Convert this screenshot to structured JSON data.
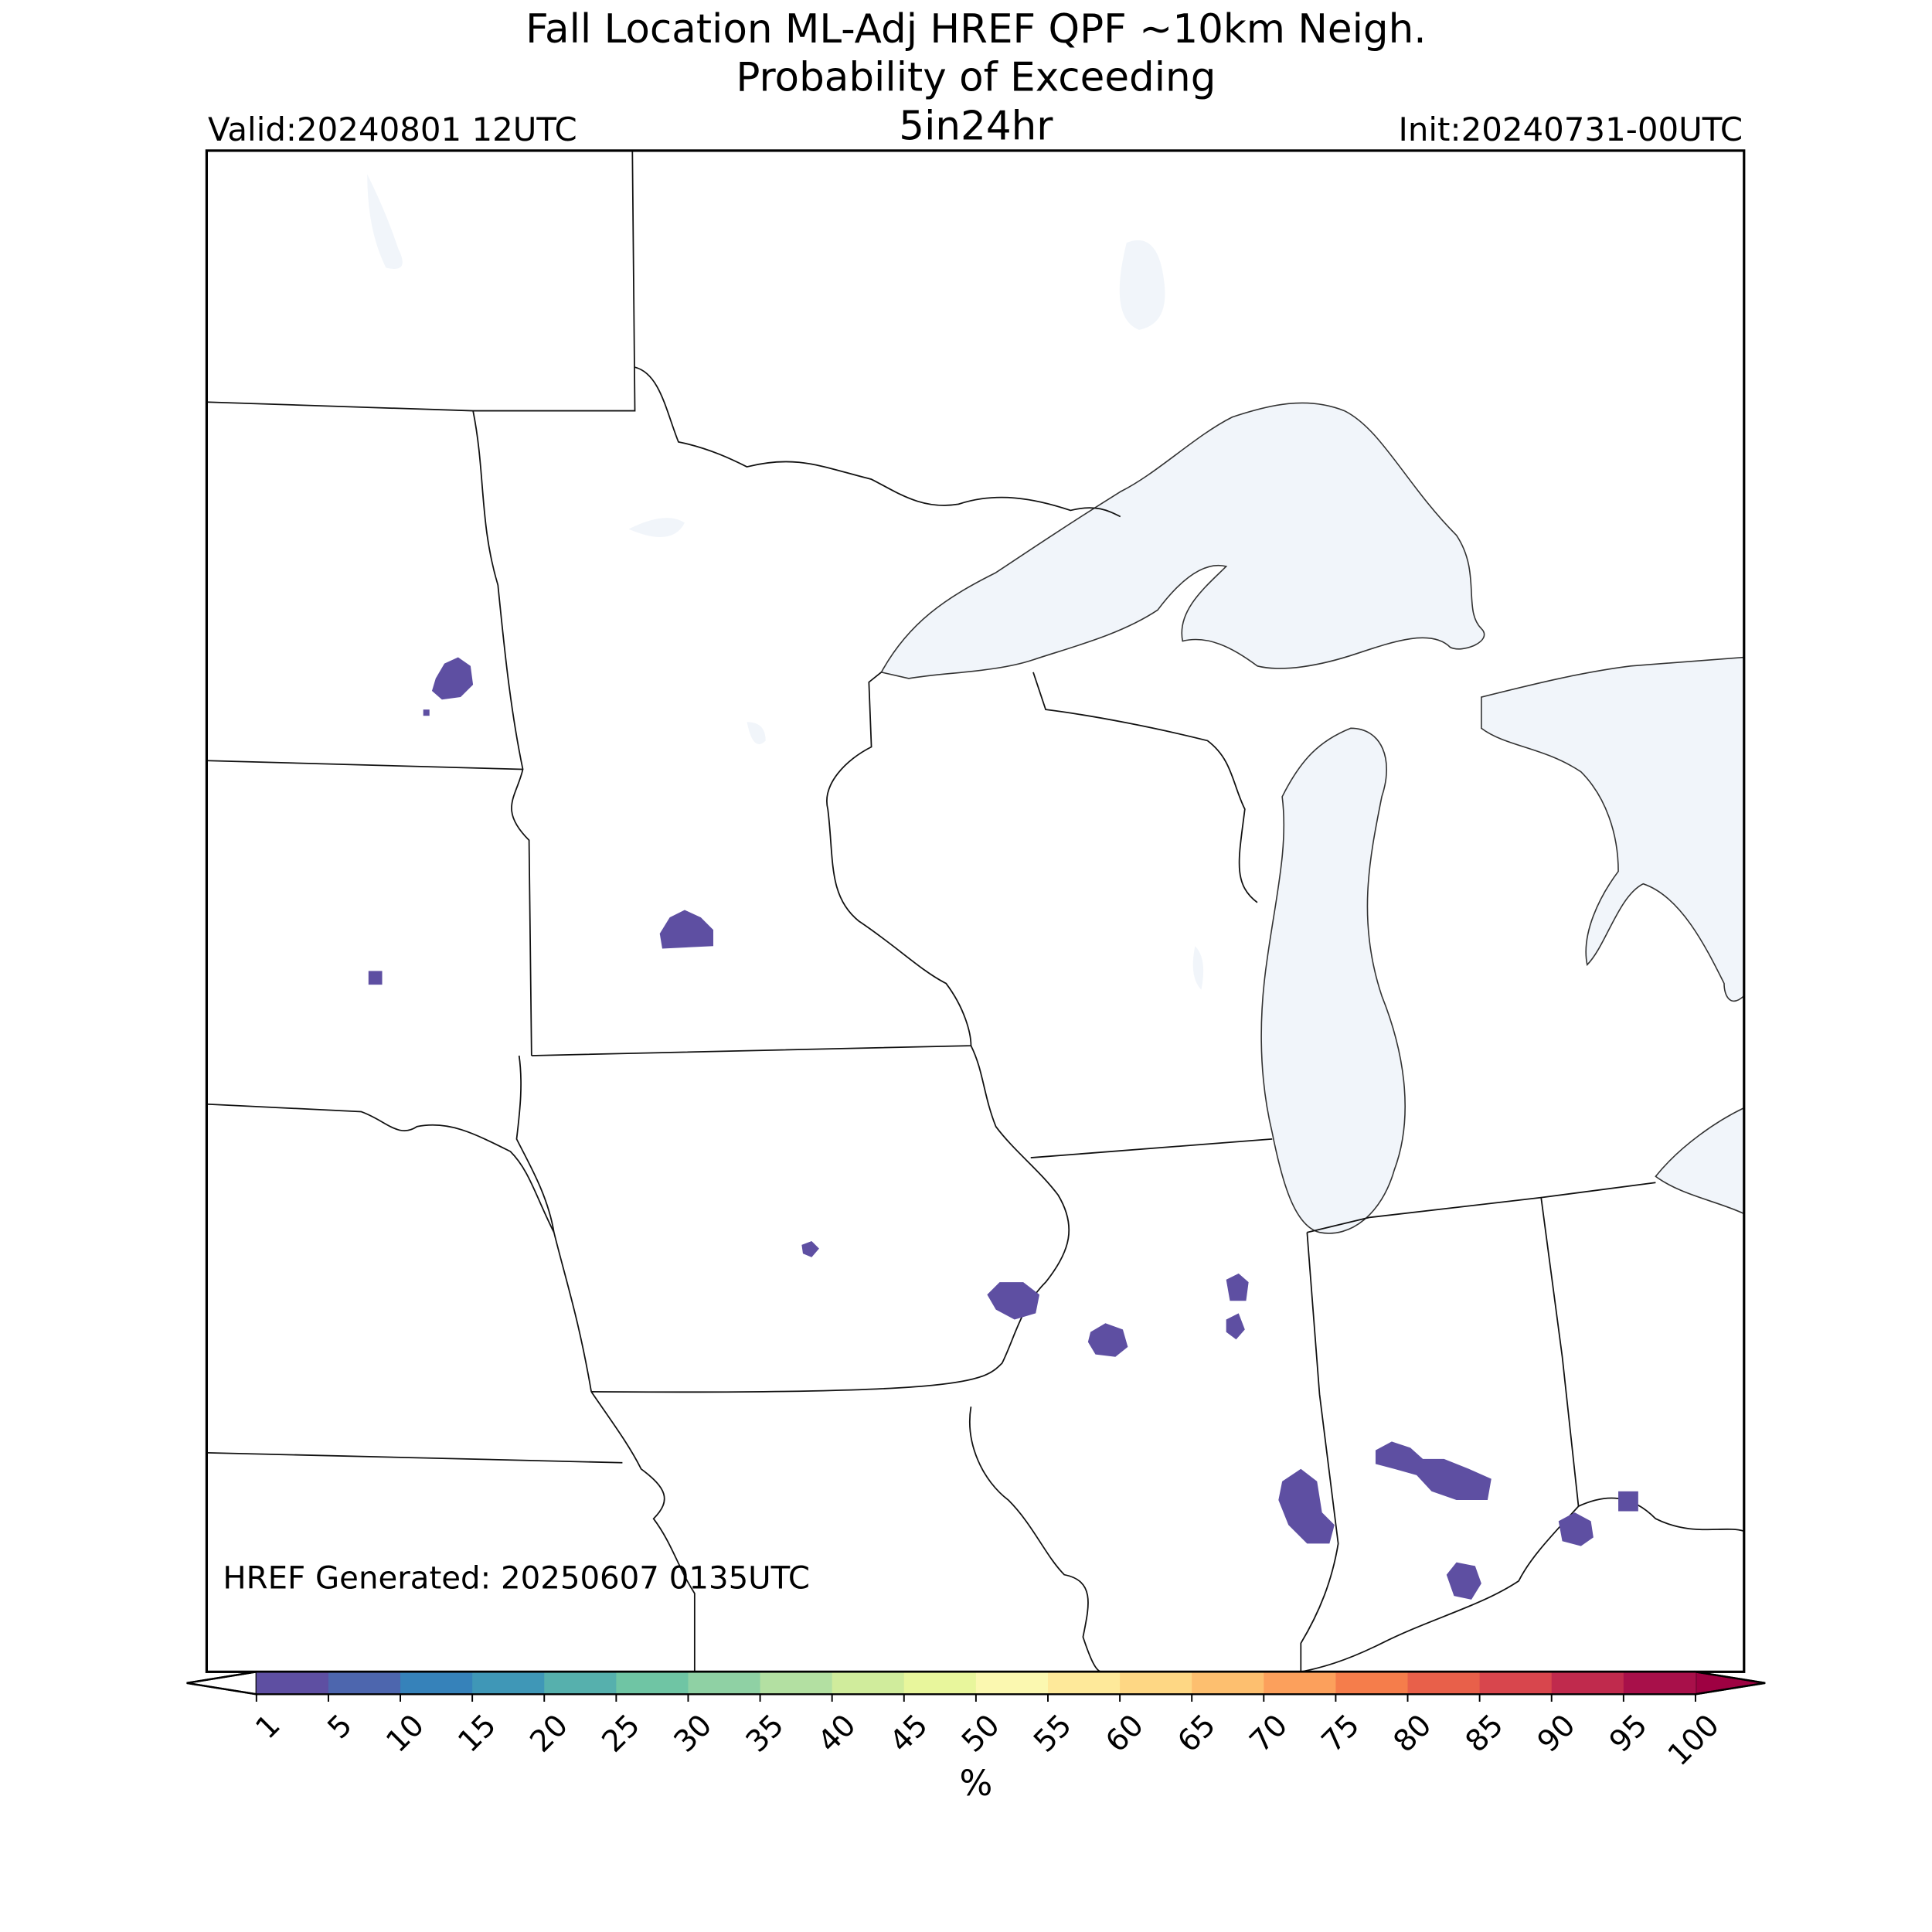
{
  "title": [
    "Fall Location ML-Adj HREF QPF ~10km Neigh.",
    "Probability of Exceeding"
  ],
  "subtitle": "5in24hr",
  "valid": "Valid:20240801 12UTC",
  "init": "Init:20240731-00UTC",
  "generated": "HREF Generated: 20250607 0135UTC",
  "colorbar": {
    "ticks": [
      1,
      5,
      10,
      15,
      20,
      25,
      30,
      35,
      40,
      45,
      50,
      55,
      60,
      65,
      70,
      75,
      80,
      85,
      90,
      95,
      100
    ],
    "colors": [
      "#5e4fa2",
      "#4d66ae",
      "#3682ba",
      "#3f97b7",
      "#56b0ad",
      "#6fc5a4",
      "#8fd1a4",
      "#b3e0a2",
      "#d0ec9c",
      "#e8f69c",
      "#fbf8b0",
      "#fee99a",
      "#fed784",
      "#fdbf6f",
      "#fca05c",
      "#f57d4b",
      "#e8604a",
      "#d8464d",
      "#c02a4d",
      "#a8104a"
    ],
    "over_color": "#9e0142",
    "under_color": "#ffffff",
    "label": "%"
  }
}
